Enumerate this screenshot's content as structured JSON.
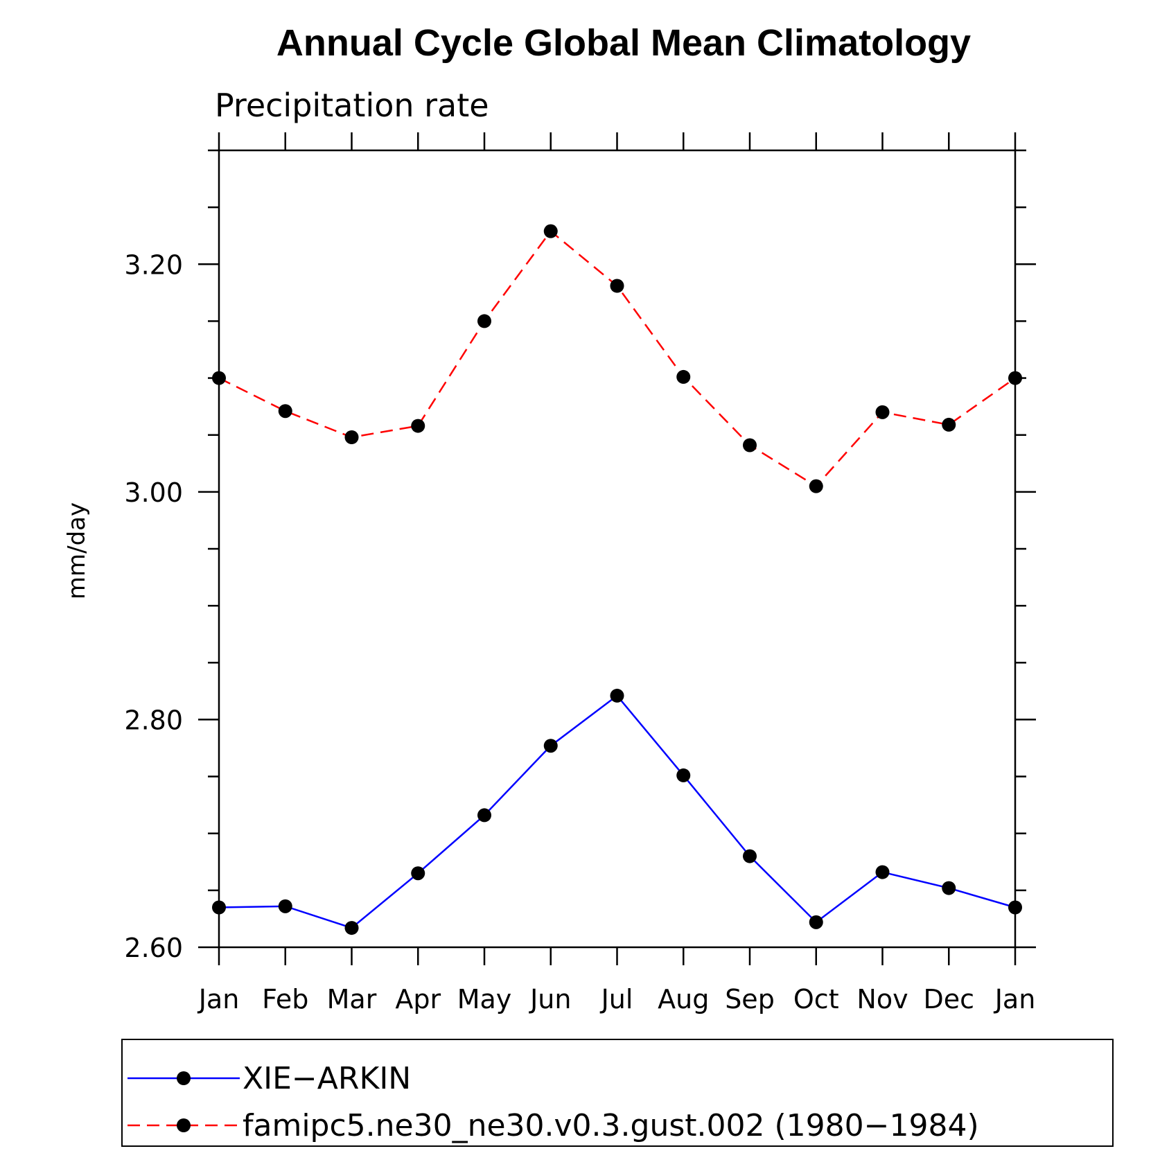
{
  "chart_data": {
    "type": "line",
    "title": "Annual Cycle Global Mean Climatology",
    "subtitle": "Precipitation rate",
    "xlabel": "",
    "ylabel": "mm/day",
    "categories": [
      "Jan",
      "Feb",
      "Mar",
      "Apr",
      "May",
      "Jun",
      "Jul",
      "Aug",
      "Sep",
      "Oct",
      "Nov",
      "Dec",
      "Jan"
    ],
    "ylim": [
      2.6,
      3.3
    ],
    "yticks": [
      2.6,
      2.8,
      3.0,
      3.2
    ],
    "ytick_labels": [
      "2.60",
      "2.80",
      "3.00",
      "3.20"
    ],
    "series": [
      {
        "name": "XIE−ARKIN",
        "color": "#0000ff",
        "dash": "solid",
        "values": [
          2.635,
          2.636,
          2.617,
          2.665,
          2.716,
          2.777,
          2.821,
          2.751,
          2.68,
          2.622,
          2.666,
          2.652,
          2.635
        ]
      },
      {
        "name": "famipc5.ne30_ne30.v0.3.gust.002 (1980−1984)",
        "color": "#ff0000",
        "dash": "dashed",
        "values": [
          3.1,
          3.071,
          3.048,
          3.058,
          3.15,
          3.229,
          3.181,
          3.101,
          3.041,
          3.005,
          3.07,
          3.059,
          3.1
        ]
      }
    ],
    "grid": false,
    "legend_position": "bottom"
  }
}
